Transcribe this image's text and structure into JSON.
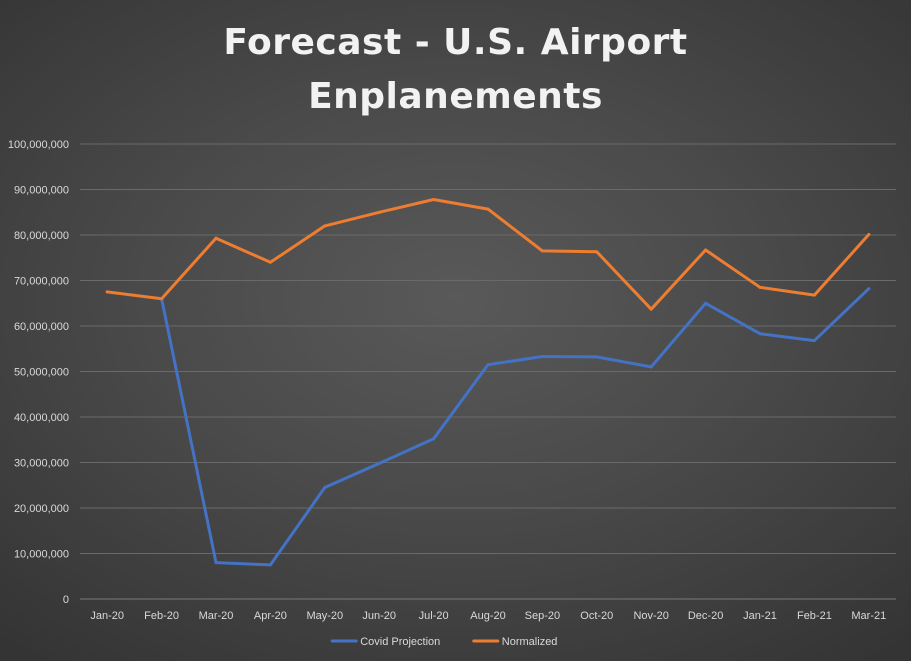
{
  "chart_data": {
    "type": "line",
    "title": "Forecast  - U.S. Airport\nEnplanements",
    "xlabel": "",
    "ylabel": "",
    "categories": [
      "Jan-20",
      "Feb-20",
      "Mar-20",
      "Apr-20",
      "May-20",
      "Jun-20",
      "Jul-20",
      "Aug-20",
      "Sep-20",
      "Oct-20",
      "Nov-20",
      "Dec-20",
      "Jan-21",
      "Feb-21",
      "Mar-21"
    ],
    "ylim": [
      0,
      100000000
    ],
    "y_ticks": [
      0,
      10000000,
      20000000,
      30000000,
      40000000,
      50000000,
      60000000,
      70000000,
      80000000,
      90000000,
      100000000
    ],
    "y_tick_labels": [
      "0",
      "10,000,000",
      "20,000,000",
      "30,000,000",
      "40,000,000",
      "50,000,000",
      "60,000,000",
      "70,000,000",
      "80,000,000",
      "90,000,000",
      "100,000,000"
    ],
    "grid": true,
    "legend_position": "bottom",
    "series": [
      {
        "name": "Covid Projection",
        "color": "#4472c4",
        "values": [
          null,
          66000000,
          8000000,
          7500000,
          24500000,
          29800000,
          35200000,
          51500000,
          53300000,
          53200000,
          51000000,
          65000000,
          58300000,
          56800000,
          68200000
        ]
      },
      {
        "name": "Normalized",
        "color": "#ed7d31",
        "values": [
          67500000,
          66000000,
          79300000,
          74000000,
          82000000,
          85000000,
          87800000,
          85700000,
          76500000,
          76300000,
          63700000,
          76700000,
          68500000,
          66800000,
          80100000
        ]
      }
    ]
  }
}
